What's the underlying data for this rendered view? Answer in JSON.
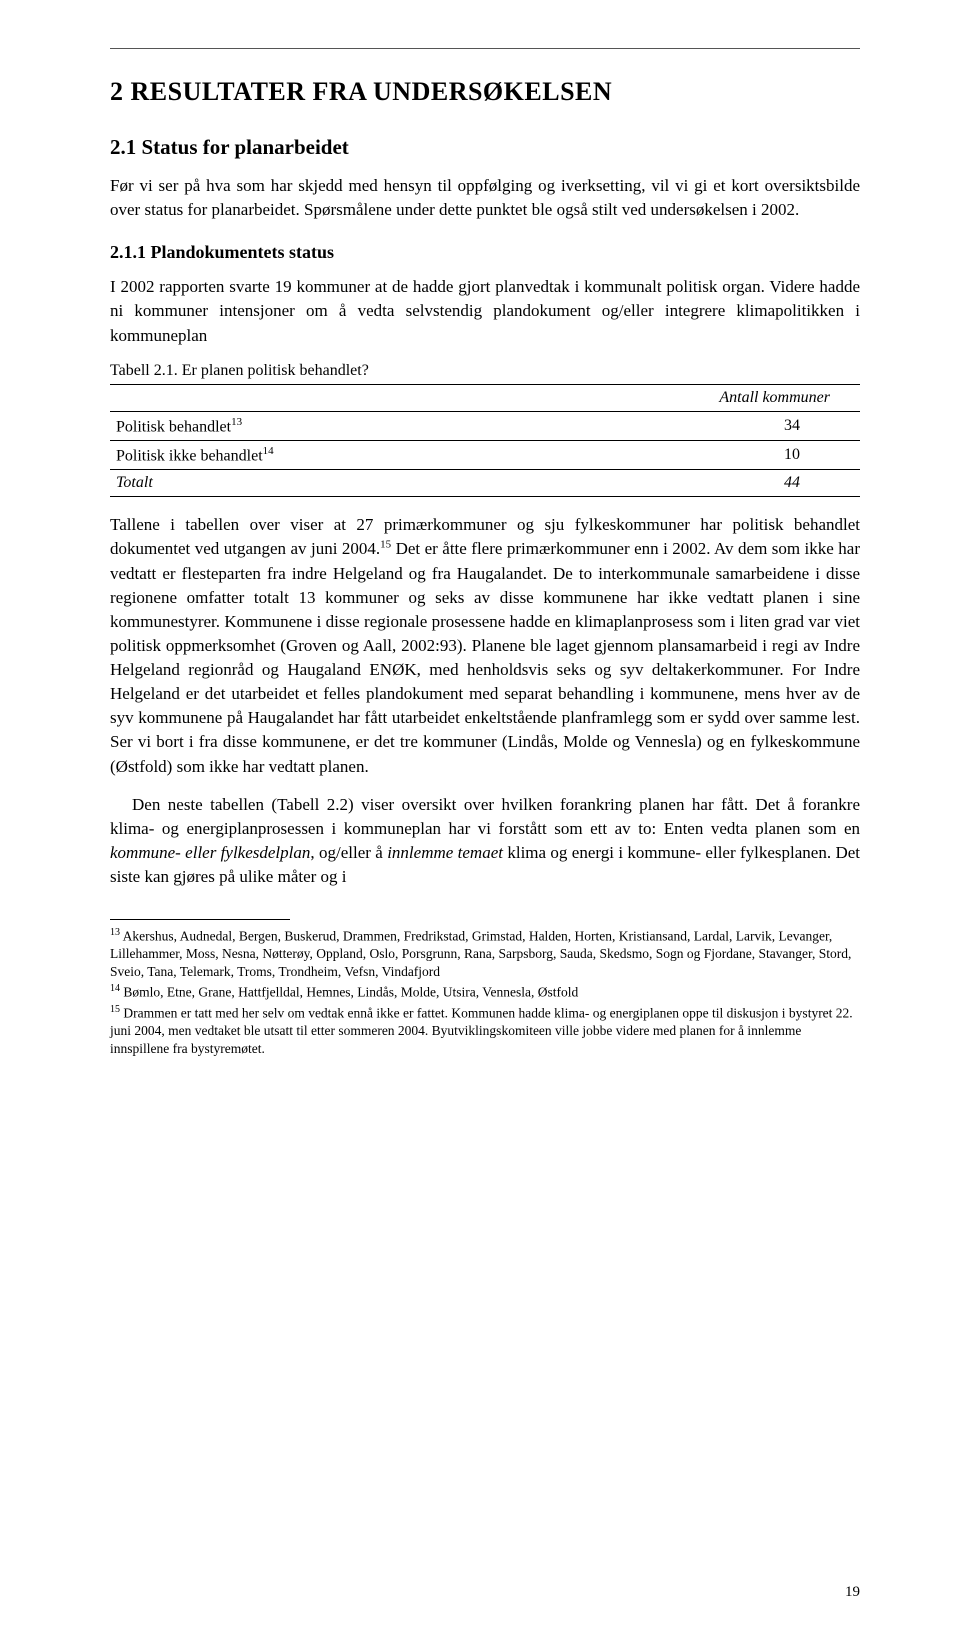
{
  "heading1": "2  RESULTATER FRA UNDERSØKELSEN",
  "heading2": "2.1  Status for planarbeidet",
  "para1": "Før vi ser på hva som har skjedd med hensyn til oppfølging og iverksetting, vil vi gi et kort oversiktsbilde over status for planarbeidet. Spørsmålene under dette punktet ble også stilt ved undersøkelsen i 2002.",
  "heading3": "2.1.1  Plandokumentets status",
  "para2": "I 2002 rapporten svarte 19 kommuner at de hadde gjort planvedtak i kommunalt politisk organ. Videre hadde ni kommuner intensjoner om å vedta selvstendig plandokument og/eller integrere klimapolitikken i kommuneplan",
  "table": {
    "caption": "Tabell 2.1. Er planen politisk behandlet?",
    "header_right": "Antall kommuner",
    "rows": [
      {
        "label": "Politisk behandlet",
        "sup": "13",
        "value": "34",
        "italic": false
      },
      {
        "label": "Politisk ikke behandlet",
        "sup": "14",
        "value": "10",
        "italic": false
      },
      {
        "label": "Totalt",
        "sup": "",
        "value": "44",
        "italic": true
      }
    ]
  },
  "para3_html": "Tallene i tabellen over viser at 27 primærkommuner og sju fylkeskommuner har politisk behandlet dokumentet ved utgangen av juni 2004.<span class=\"sup\">15</span> Det er åtte flere primærkommuner enn i 2002. Av dem som ikke har vedtatt er flesteparten fra indre Helgeland og fra Haugalandet. De to interkommunale samarbeidene i disse regionene omfatter totalt 13 kommuner og seks av disse kommunene har ikke vedtatt planen i sine kommunestyrer. Kommunene i disse regionale prosessene hadde en klimaplanprosess som i liten grad var viet politisk oppmerksomhet (Groven og Aall, 2002:93). Planene ble laget gjennom plansamarbeid i regi av Indre Helgeland regionråd og Haugaland ENØK, med henholdsvis seks og syv deltakerkommuner. For Indre Helgeland er det utarbeidet et felles plandokument med separat behandling i kommunene, mens hver av de syv kommunene på Haugalandet har fått utarbeidet enkeltstående planframlegg som er sydd over samme lest. Ser vi bort i fra disse kommunene, er det tre kommuner (Lindås, Molde og Vennesla) og en fylkeskommune (Østfold) som ikke har vedtatt planen.",
  "para4_html": "Den neste tabellen (Tabell 2.2) viser oversikt over hvilken forankring planen har fått. Det å forankre klima- og energiplanprosessen i kommuneplan har vi forstått som ett av to: Enten vedta planen som en <span class=\"italic\">kommune- eller fylkesdelplan</span>, og/eller å <span class=\"italic\">innlemme temaet</span> klima og energi i kommune- eller fylkesplanen. Det siste kan gjøres på ulike måter og i",
  "footnotes": [
    {
      "sup": "13",
      "text": "Akershus, Audnedal, Bergen, Buskerud, Drammen, Fredrikstad, Grimstad, Halden, Horten, Kristiansand, Lardal, Larvik, Levanger, Lillehammer, Moss, Nesna, Nøtterøy, Oppland, Oslo, Porsgrunn, Rana, Sarpsborg, Sauda, Skedsmo, Sogn og Fjordane, Stavanger, Stord, Sveio, Tana, Telemark, Troms, Trondheim, Vefsn, Vindafjord"
    },
    {
      "sup": "14",
      "text": "Bømlo, Etne, Grane, Hattfjelldal, Hemnes, Lindås, Molde, Utsira, Vennesla, Østfold"
    },
    {
      "sup": "15",
      "text": "Drammen er tatt med her selv om vedtak ennå ikke er fattet. Kommunen hadde klima- og energiplanen oppe til diskusjon i bystyret 22. juni 2004, men vedtaket ble utsatt til etter sommeren 2004. Byutviklingskomiteen ville jobbe videre med planen for å innlemme innspillene fra bystyremøtet."
    }
  ],
  "page_number": "19"
}
